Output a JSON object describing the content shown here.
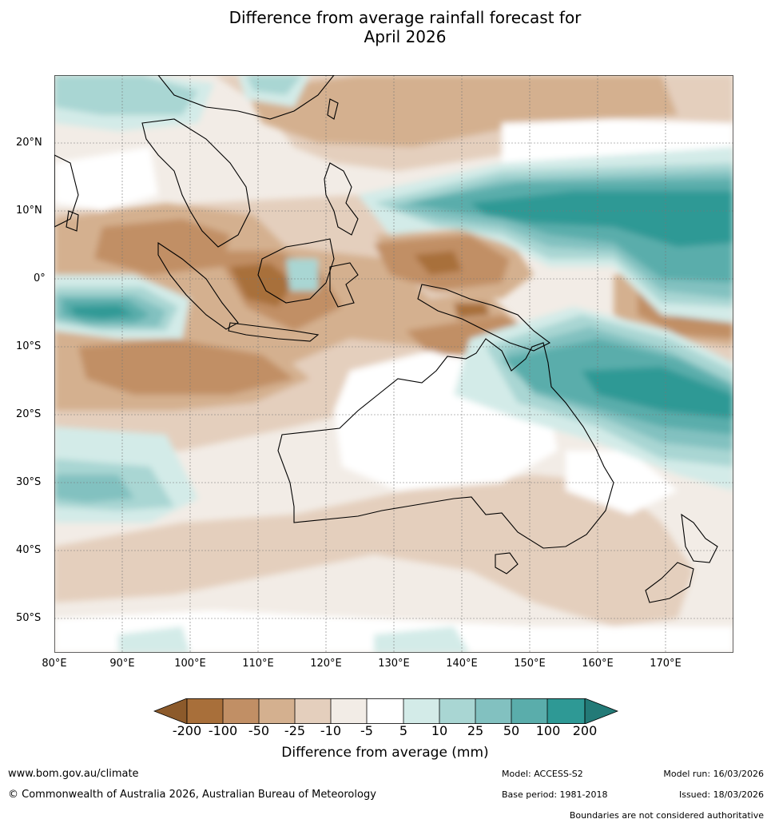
{
  "title": {
    "line1": "Difference from average rainfall forecast for",
    "line2": "April 2026"
  },
  "map": {
    "lat_labels": [
      "20°N",
      "10°N",
      "0°",
      "10°S",
      "20°S",
      "30°S",
      "40°S",
      "50°S"
    ],
    "lon_labels": [
      "80°E",
      "90°E",
      "100°E",
      "110°E",
      "120°E",
      "130°E",
      "140°E",
      "150°E",
      "160°E",
      "170°E"
    ],
    "colors": {
      "dry_200": "#a86f3a",
      "dry_100": "#c18f65",
      "dry_50": "#d4b08f",
      "dry_25": "#e4cfbd",
      "dry_10": "#f2ece6",
      "neutral": "#ffffff",
      "wet_5": "#d3ebe8",
      "wet_10": "#a9d6d3",
      "wet_25": "#82c1c0",
      "wet_50": "#5aadab",
      "wet_100": "#2e9995",
      "wet_200": "#237a77",
      "dry_under": "#8c5a2b"
    }
  },
  "colorbar": {
    "ticks": [
      "-200",
      "-100",
      "-50",
      "-25",
      "-10",
      "-5",
      "5",
      "10",
      "25",
      "50",
      "100",
      "200"
    ],
    "label": "Difference from average (mm)"
  },
  "footer": {
    "website": "www.bom.gov.au/climate",
    "copyright": "© Commonwealth of Australia 2026, Australian Bureau of Meteorology",
    "model": "Model: ACCESS-S2",
    "base_period": "Base period: 1981-2018",
    "model_run": "Model run: 16/03/2026",
    "issued": "Issued: 18/03/2026",
    "disclaimer": "Boundaries are not considered authoritative"
  }
}
